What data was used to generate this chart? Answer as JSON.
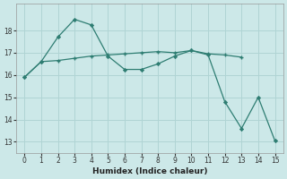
{
  "line1_x": [
    0,
    1,
    2,
    3,
    4,
    5,
    6,
    7,
    8,
    9,
    10,
    11,
    12,
    13
  ],
  "line1_y": [
    15.9,
    16.6,
    16.65,
    16.75,
    16.85,
    16.9,
    16.95,
    17.0,
    17.05,
    17.0,
    17.1,
    16.95,
    16.9,
    16.8
  ],
  "line2_x": [
    0,
    1,
    2,
    3,
    4,
    5,
    6,
    7,
    8,
    9,
    10,
    11,
    12,
    13,
    14,
    15
  ],
  "line2_y": [
    15.9,
    16.6,
    17.7,
    18.5,
    18.25,
    16.85,
    16.25,
    16.25,
    16.5,
    16.85,
    17.1,
    16.9,
    14.8,
    13.6,
    15.0,
    13.05
  ],
  "color": "#2e7d72",
  "bg_color": "#cce8e8",
  "grid_color": "#b0d4d4",
  "xlabel": "Humidex (Indice chaleur)",
  "ylim": [
    12.5,
    19.2
  ],
  "xlim": [
    -0.5,
    15.5
  ],
  "yticks": [
    13,
    14,
    15,
    16,
    17,
    18
  ],
  "xticks": [
    0,
    1,
    2,
    3,
    4,
    5,
    6,
    7,
    8,
    9,
    10,
    11,
    12,
    13,
    14,
    15
  ]
}
